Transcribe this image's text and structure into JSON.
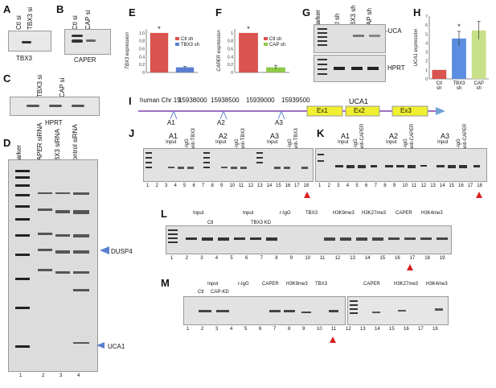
{
  "panels": {
    "A": {
      "letter": "A",
      "lanes": [
        "Ctl si",
        "TBX3 si"
      ],
      "gene": "TBX3"
    },
    "B": {
      "letter": "B",
      "lanes": [
        "Ctl si",
        "CAP si"
      ],
      "gene": "CAPER"
    },
    "C": {
      "letter": "C",
      "lanes": [
        "TBX3 si",
        "CAP si"
      ],
      "gene": "HPRT"
    },
    "D": {
      "letter": "D",
      "lanes": [
        "Marker",
        "CAPER siRNA",
        "TBX3 siRNA",
        "Control siRNA"
      ],
      "marks": [
        "DUSP4",
        "UCA1"
      ],
      "lane_numbers": [
        "1",
        "2",
        "3",
        "4"
      ]
    },
    "E": {
      "letter": "E"
    },
    "F": {
      "letter": "F"
    },
    "G": {
      "letter": "G",
      "lanes": [
        "Marker",
        "Ctl sh",
        "TBX3 sh",
        "CAP sh"
      ],
      "bands": [
        "-UCA",
        "HPRT"
      ]
    },
    "H": {
      "letter": "H"
    },
    "I": {
      "letter": "I",
      "chr": "human Chr 19:",
      "positions": [
        "15938000",
        "15938500",
        "15939000",
        "15939500"
      ],
      "gene": "UCA1",
      "exons": [
        "Ex1",
        "Ex2",
        "Ex3"
      ],
      "amplicons": [
        "A1",
        "A2",
        "A3"
      ]
    },
    "J": {
      "letter": "J",
      "groups": [
        "A1",
        "A2",
        "A3"
      ],
      "input": "Input",
      "rigg": "r-IgG",
      "anti": "anti-TBX3",
      "lane_numbers": [
        "1",
        "2",
        "3",
        "4",
        "5",
        "6",
        "7",
        "8",
        "9",
        "10",
        "11",
        "12",
        "13",
        "14",
        "15",
        "16",
        "17",
        "18"
      ]
    },
    "K": {
      "letter": "K",
      "groups": [
        "A1",
        "A2",
        "A3"
      ],
      "input": "Input",
      "rigg": "r-IgG",
      "anti": "anti-CAPER",
      "lane_numbers": [
        "1",
        "2",
        "3",
        "4",
        "5",
        "6",
        "7",
        "8",
        "9",
        "10",
        "11",
        "12",
        "13",
        "14",
        "15",
        "16",
        "17",
        "18"
      ]
    },
    "L": {
      "letter": "L",
      "headers": [
        "Input",
        "Input",
        "r-IgG",
        "TBX3",
        "H3K9me3",
        "H3K27me3",
        "CAPER",
        "H3K4me3"
      ],
      "sub": [
        "Ctl",
        "TBX3 KD"
      ],
      "ck": [
        "C",
        "KD"
      ],
      "lane_numbers": [
        "1",
        "2",
        "3",
        "4",
        "5",
        "6",
        "7",
        "8",
        "9",
        "10",
        "11",
        "12",
        "13",
        "14",
        "15",
        "16",
        "17",
        "18",
        "19"
      ]
    },
    "M": {
      "letter": "M",
      "headers": [
        "Input",
        "r-IgG",
        "CAPER",
        "H3K9me3",
        "TBX3",
        "CAPER",
        "H3K27me3",
        "H3K4me3"
      ],
      "input_sub": [
        "Ctl",
        "CAP-KD"
      ],
      "ck": [
        "C",
        "KD"
      ],
      "lane_numbers": [
        "1",
        "2",
        "3",
        "4",
        "5",
        "6",
        "7",
        "8",
        "9",
        "10",
        "11",
        "12",
        "13",
        "14",
        "15",
        "16",
        "17",
        "18"
      ]
    }
  },
  "chart_data": [
    {
      "type": "bar",
      "panel": "E",
      "categories": [
        "Ctl sh",
        "TBX3 sh"
      ],
      "values": [
        1.0,
        0.13
      ],
      "errors": [
        0.0,
        0.02
      ],
      "ylabel": "TBX3 expression",
      "ylim": [
        0,
        1.1
      ],
      "ticks": [
        "0",
        "0.2",
        "0.4",
        "0.6",
        "0.8",
        "1.0"
      ],
      "legend": [
        "Ctl sh",
        "TBX3 sh"
      ],
      "annotation": "*",
      "colors": [
        "#d9534f",
        "#5b7fd0"
      ]
    },
    {
      "type": "bar",
      "panel": "F",
      "categories": [
        "Ctl sh",
        "CAP sh"
      ],
      "values": [
        1.0,
        0.13
      ],
      "errors": [
        0.0,
        0.05
      ],
      "ylabel": "CAPER expression",
      "ylim": [
        0,
        1.1
      ],
      "ticks": [
        "0",
        "0.2",
        "0.4",
        "0.6",
        "0.8",
        "1"
      ],
      "legend": [
        "Ctl sh",
        "CAP sh"
      ],
      "annotation": "*",
      "colors": [
        "#d9534f",
        "#8fc94a"
      ]
    },
    {
      "type": "bar",
      "panel": "H",
      "categories": [
        "Ctl sh",
        "TBX3 sh",
        "CAP sh"
      ],
      "values": [
        1.0,
        4.5,
        5.4
      ],
      "errors": [
        0.0,
        0.8,
        1.0
      ],
      "ylabel": "UCA1 expression",
      "ylim": [
        0,
        7
      ],
      "ticks": [
        "0",
        "1",
        "2",
        "3",
        "4",
        "5",
        "6",
        "7"
      ],
      "annotation": "*",
      "colors": [
        "#d9534f",
        "#5b8de0",
        "#c8e08a"
      ]
    }
  ]
}
